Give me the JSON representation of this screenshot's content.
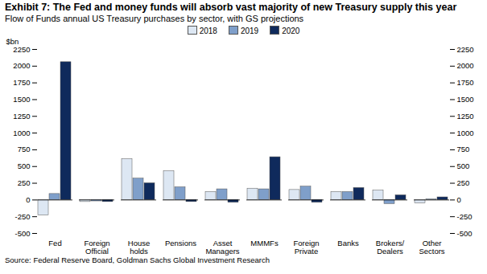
{
  "chart_data": {
    "type": "bar",
    "title": "Exhibit 7: The Fed and money funds will absorb vast majority of new Treasury supply this year",
    "subtitle": "Flow of Funds annual US Treasury purchases by sector, with GS projections",
    "source": "Source: Federal Reserve Board, Goldman Sachs Global Investment Research",
    "y_label": "$bn",
    "categories": [
      "Fed",
      "Foreign\nOfficial",
      "House\nholds",
      "Pensions",
      "Asset\nManagers",
      "MMMFs",
      "Foreign\nPrivate",
      "Banks",
      "Brokers/\nDealers",
      "Other\nSectors"
    ],
    "series": [
      {
        "name": "2018",
        "color": "#dde7f3",
        "values": [
          -230,
          -30,
          610,
          430,
          120,
          170,
          150,
          120,
          140,
          -50
        ]
      },
      {
        "name": "2019",
        "color": "#7f9fca",
        "values": [
          90,
          -20,
          320,
          190,
          160,
          160,
          200,
          120,
          -60,
          10
        ]
      },
      {
        "name": "2020",
        "color": "#0f2a5c",
        "values": [
          2060,
          -30,
          250,
          -30,
          -40,
          640,
          -40,
          180,
          70,
          40
        ]
      }
    ],
    "ylim": [
      -500,
      2250
    ],
    "yticks": [
      -500,
      -250,
      0,
      250,
      500,
      750,
      1000,
      1250,
      1500,
      1750,
      2000,
      2250
    ],
    "legend": "top",
    "grid": false
  }
}
